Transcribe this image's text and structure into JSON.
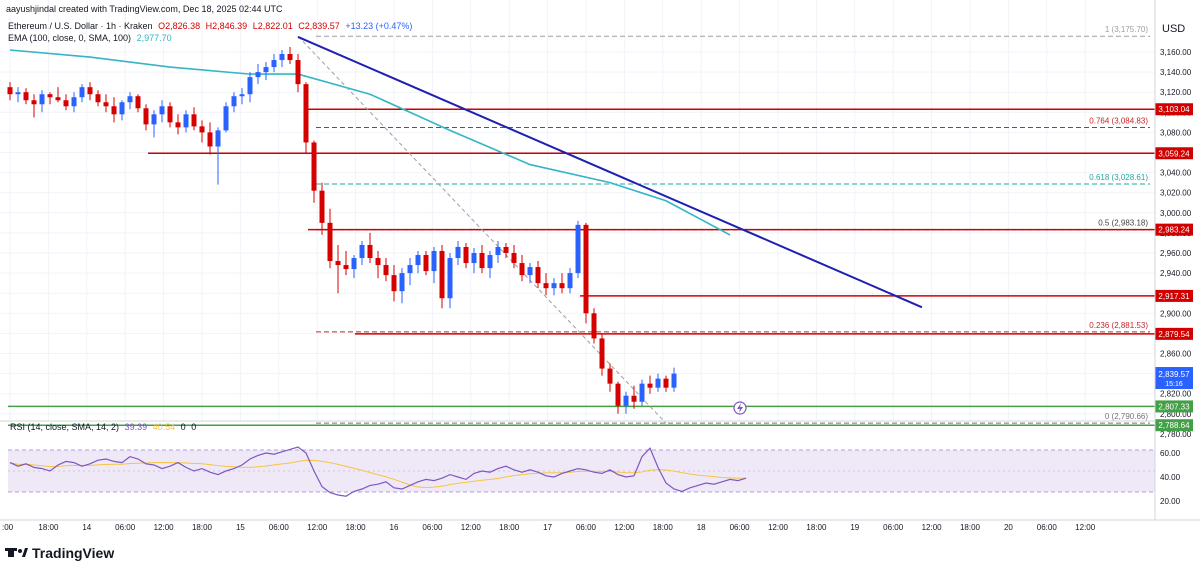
{
  "header": {
    "credit": "aayushjindal created with TradingView.com, Dec 18, 2025 02:44 UTC",
    "symbol": "Ethereum / U.S. Dollar · 1h · Kraken",
    "ohlc_o": "O2,826.38",
    "ohlc_h": "H2,846.39",
    "ohlc_l": "L2,822.01",
    "ohlc_c": "C2,839.57",
    "change": "+13.23 (+0.47%)",
    "ema_label": "EMA (100, close, 0, SMA, 100)",
    "ema_value": "2,977.70"
  },
  "axis": {
    "currency": "USD",
    "price_ticks": [
      "3,160.00",
      "3,140.00",
      "3,120.00",
      "3,100.00",
      "3,080.00",
      "3,060.00",
      "3,040.00",
      "3,020.00",
      "3,000.00",
      "2,980.00",
      "2,960.00",
      "2,940.00",
      "2,920.00",
      "2,900.00",
      "2,880.00",
      "2,860.00",
      "2,840.00",
      "2,820.00",
      "2,800.00",
      "2,780.00"
    ],
    "rsi_ticks": [
      "60.00",
      "40.00",
      "20.00"
    ],
    "time_labels": [
      ":00",
      "18:00",
      "14",
      "06:00",
      "12:00",
      "18:00",
      "15",
      "06:00",
      "12:00",
      "18:00",
      "16",
      "06:00",
      "12:00",
      "18:00",
      "17",
      "06:00",
      "12:00",
      "18:00",
      "18",
      "06:00",
      "12:00",
      "18:00",
      "19",
      "06:00",
      "12:00",
      "18:00",
      "20",
      "06:00",
      "12:00"
    ]
  },
  "levels": [
    "3,103.04",
    "3,059.24",
    "2,983.24",
    "2,917.31",
    "2,879.54",
    "2,807.33",
    "2,788.64"
  ],
  "fib": [
    {
      "label": "1 (3,175.70)",
      "price": 3175.7
    },
    {
      "label": "0.764 (3,084.83)",
      "price": 3084.83
    },
    {
      "label": "0.618 (3,028.61)",
      "price": 3028.61
    },
    {
      "label": "0.5 (2,983.18)",
      "price": 2983.18
    },
    {
      "label": "0.236 (2,881.53)",
      "price": 2881.53
    },
    {
      "label": "0 (2,790.66)",
      "price": 2790.66
    }
  ],
  "price_tag": {
    "value": "2,839.57",
    "countdown": "15:16"
  },
  "rsi": {
    "label": "RSI (14, close, SMA, 14, 2)",
    "value": "39.39",
    "sma": "40.54",
    "z1": "0",
    "z2": "0"
  },
  "brand": "TradingView",
  "colors": {
    "up": "#2962ff",
    "down": "#d50000",
    "ema": "#33b5c6",
    "trend": "#1f20b0",
    "rsi": "#7e57c2",
    "rsi_sma": "#f5c542",
    "green": "#43a047",
    "level": "#d00000"
  },
  "chart_data": {
    "type": "candlestick",
    "title": "Ethereum / U.S. Dollar · 1h · Kraken",
    "ylim": [
      2770,
      3190
    ],
    "y_scale": "linear",
    "currency": "USD",
    "x_start_label": "Dec 13 20:00",
    "interval": "1h",
    "last_close": 2839.57,
    "candles": [
      [
        3125,
        3130,
        3112,
        3118
      ],
      [
        3118,
        3125,
        3110,
        3120
      ],
      [
        3120,
        3124,
        3108,
        3112
      ],
      [
        3112,
        3118,
        3095,
        3108
      ],
      [
        3108,
        3122,
        3100,
        3118
      ],
      [
        3118,
        3120,
        3108,
        3115
      ],
      [
        3115,
        3125,
        3110,
        3112
      ],
      [
        3112,
        3118,
        3102,
        3106
      ],
      [
        3106,
        3120,
        3100,
        3115
      ],
      [
        3115,
        3128,
        3110,
        3125
      ],
      [
        3125,
        3130,
        3112,
        3118
      ],
      [
        3118,
        3122,
        3106,
        3110
      ],
      [
        3110,
        3118,
        3100,
        3106
      ],
      [
        3106,
        3115,
        3090,
        3098
      ],
      [
        3098,
        3112,
        3092,
        3110
      ],
      [
        3110,
        3120,
        3103,
        3116
      ],
      [
        3116,
        3118,
        3100,
        3104
      ],
      [
        3104,
        3108,
        3082,
        3088
      ],
      [
        3088,
        3102,
        3075,
        3098
      ],
      [
        3098,
        3112,
        3090,
        3106
      ],
      [
        3106,
        3110,
        3085,
        3090
      ],
      [
        3090,
        3098,
        3078,
        3085
      ],
      [
        3085,
        3102,
        3080,
        3098
      ],
      [
        3098,
        3105,
        3082,
        3086
      ],
      [
        3086,
        3092,
        3070,
        3080
      ],
      [
        3080,
        3090,
        3058,
        3066
      ],
      [
        3066,
        3085,
        3028,
        3082
      ],
      [
        3082,
        3110,
        3080,
        3106
      ],
      [
        3106,
        3120,
        3100,
        3116
      ],
      [
        3116,
        3124,
        3108,
        3118
      ],
      [
        3118,
        3140,
        3110,
        3135
      ],
      [
        3135,
        3148,
        3128,
        3140
      ],
      [
        3140,
        3150,
        3132,
        3145
      ],
      [
        3145,
        3158,
        3140,
        3152
      ],
      [
        3152,
        3162,
        3145,
        3158
      ],
      [
        3158,
        3165,
        3148,
        3152
      ],
      [
        3152,
        3158,
        3120,
        3128
      ],
      [
        3128,
        3130,
        3060,
        3070
      ],
      [
        3070,
        3072,
        3010,
        3022
      ],
      [
        3022,
        3030,
        2978,
        2990
      ],
      [
        2990,
        3004,
        2945,
        2952
      ],
      [
        2952,
        2968,
        2920,
        2948
      ],
      [
        2948,
        2962,
        2938,
        2944
      ],
      [
        2944,
        2958,
        2935,
        2955
      ],
      [
        2955,
        2972,
        2948,
        2968
      ],
      [
        2968,
        2980,
        2950,
        2955
      ],
      [
        2955,
        2962,
        2935,
        2948
      ],
      [
        2948,
        2955,
        2932,
        2938
      ],
      [
        2938,
        2948,
        2912,
        2922
      ],
      [
        2922,
        2945,
        2910,
        2940
      ],
      [
        2940,
        2955,
        2928,
        2948
      ],
      [
        2948,
        2962,
        2940,
        2958
      ],
      [
        2958,
        2962,
        2938,
        2942
      ],
      [
        2942,
        2966,
        2930,
        2962
      ],
      [
        2962,
        2968,
        2905,
        2915
      ],
      [
        2915,
        2960,
        2905,
        2955
      ],
      [
        2955,
        2972,
        2948,
        2966
      ],
      [
        2966,
        2970,
        2945,
        2950
      ],
      [
        2950,
        2965,
        2940,
        2960
      ],
      [
        2960,
        2968,
        2940,
        2945
      ],
      [
        2945,
        2962,
        2935,
        2958
      ],
      [
        2958,
        2972,
        2950,
        2966
      ],
      [
        2966,
        2970,
        2955,
        2960
      ],
      [
        2960,
        2968,
        2945,
        2950
      ],
      [
        2950,
        2958,
        2932,
        2938
      ],
      [
        2938,
        2950,
        2930,
        2946
      ],
      [
        2946,
        2952,
        2925,
        2930
      ],
      [
        2930,
        2940,
        2918,
        2925
      ],
      [
        2925,
        2935,
        2918,
        2930
      ],
      [
        2930,
        2940,
        2920,
        2925
      ],
      [
        2925,
        2945,
        2920,
        2940
      ],
      [
        2940,
        2992,
        2935,
        2988
      ],
      [
        2988,
        2990,
        2890,
        2900
      ],
      [
        2900,
        2905,
        2870,
        2875
      ],
      [
        2875,
        2880,
        2838,
        2845
      ],
      [
        2845,
        2850,
        2822,
        2830
      ],
      [
        2830,
        2832,
        2800,
        2808
      ],
      [
        2808,
        2822,
        2800,
        2818
      ],
      [
        2818,
        2828,
        2805,
        2812
      ],
      [
        2812,
        2834,
        2808,
        2830
      ],
      [
        2830,
        2838,
        2820,
        2826
      ],
      [
        2826,
        2840,
        2822,
        2835
      ],
      [
        2835,
        2838,
        2822,
        2826
      ],
      [
        2826,
        2846,
        2822,
        2840
      ]
    ],
    "ema100": [
      [
        0,
        3162
      ],
      [
        10,
        3155
      ],
      [
        20,
        3145
      ],
      [
        30,
        3138
      ],
      [
        36,
        3138
      ],
      [
        45,
        3118
      ],
      [
        55,
        3082
      ],
      [
        65,
        3048
      ],
      [
        75,
        3030
      ],
      [
        82,
        3012
      ],
      [
        90,
        2978
      ]
    ],
    "trendline": {
      "from": [
        36,
        3175
      ],
      "to": [
        114,
        2906
      ]
    },
    "fib_swing": {
      "from": [
        36,
        3175.7
      ],
      "to": [
        82,
        2790.66
      ]
    },
    "rsi_values": [
      52,
      49,
      51,
      48,
      47,
      45,
      50,
      53,
      52,
      49,
      51,
      54,
      55,
      53,
      52,
      57,
      55,
      51,
      50,
      47,
      49,
      52,
      48,
      45,
      47,
      44,
      42,
      45,
      47,
      50,
      55,
      58,
      60,
      59,
      61,
      63,
      65,
      60,
      45,
      32,
      27,
      25,
      24,
      28,
      30,
      33,
      34,
      36,
      31,
      30,
      33,
      36,
      38,
      37,
      39,
      42,
      40,
      38,
      43,
      45,
      44,
      47,
      49,
      46,
      44,
      46,
      44,
      41,
      40,
      43,
      45,
      47,
      46,
      44,
      43,
      46,
      42,
      40,
      41,
      57,
      64,
      48,
      35,
      30,
      28,
      31,
      33,
      35,
      34,
      36,
      38,
      37,
      39
    ]
  }
}
